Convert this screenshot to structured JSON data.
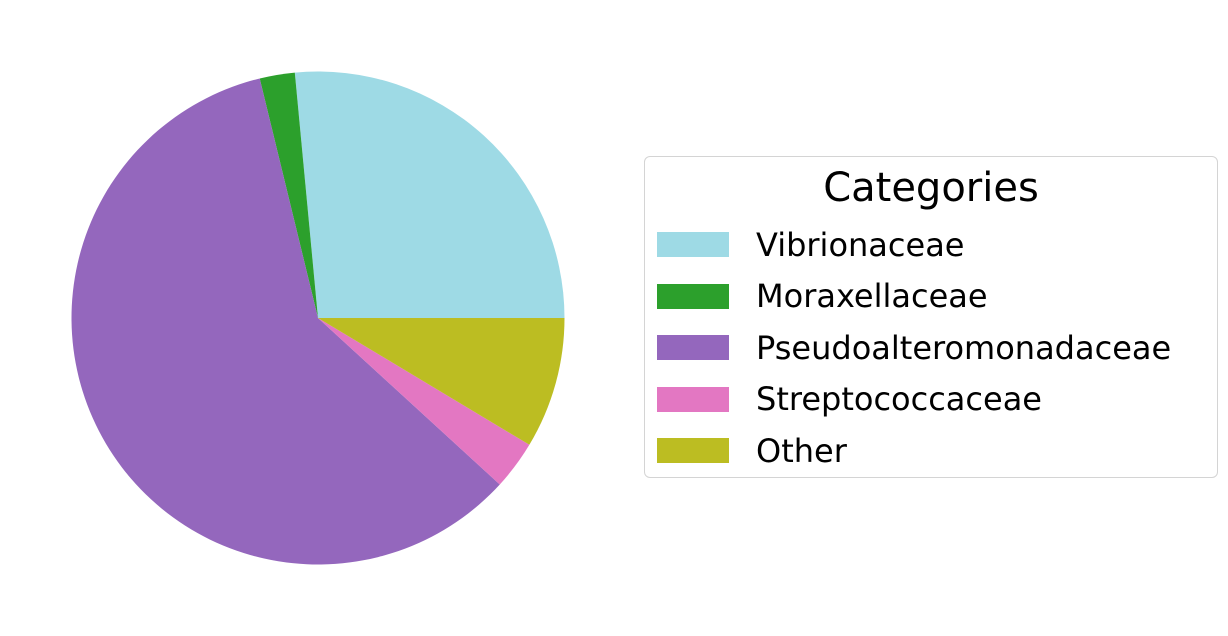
{
  "chart_data": {
    "type": "pie",
    "legend_title": "Categories",
    "legend_placement": "right",
    "categories": [
      "Vibrionaceae",
      "Moraxellaceae",
      "Pseudoalteromonadaceae",
      "Streptococcaceae",
      "Other"
    ],
    "values": [
      26.5,
      2.3,
      59.4,
      3.2,
      8.6
    ],
    "unit": "%",
    "colors": [
      "#9edae5",
      "#2ca02c",
      "#9467bd",
      "#e377c2",
      "#bcbd22"
    ],
    "start_angle_deg": 0,
    "direction": "counterclockwise"
  }
}
